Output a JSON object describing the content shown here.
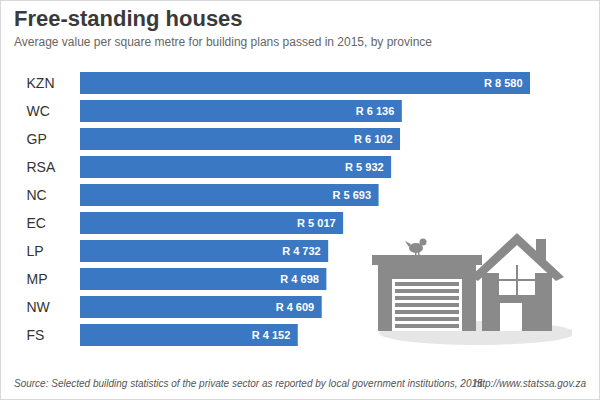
{
  "chart_data": {
    "type": "bar",
    "title": "Free-standing houses",
    "subtitle": "Average value per square metre for building plans passed in 2015, by province",
    "source": "Source: Selected building statistics of the private sector as reported by local government institutions, 2015",
    "url": "http://www.statssa.gov.za",
    "orientation": "horizontal",
    "categories": [
      "KZN",
      "WC",
      "GP",
      "RSA",
      "NC",
      "EC",
      "LP",
      "MP",
      "NW",
      "FS"
    ],
    "values": [
      8580,
      6136,
      6102,
      5932,
      5693,
      5017,
      4732,
      4698,
      4609,
      4152
    ],
    "value_labels": [
      "R 8 580",
      "R 6 136",
      "R 6 102",
      "R 5 932",
      "R 5 693",
      "R 5 017",
      "R 4 732",
      "R 4 698",
      "R 4 609",
      "R 4 152"
    ],
    "data_labels": true,
    "color": "#3a78c3",
    "xlim": [
      0,
      8580
    ],
    "tick_labels": "y",
    "grid": false
  }
}
